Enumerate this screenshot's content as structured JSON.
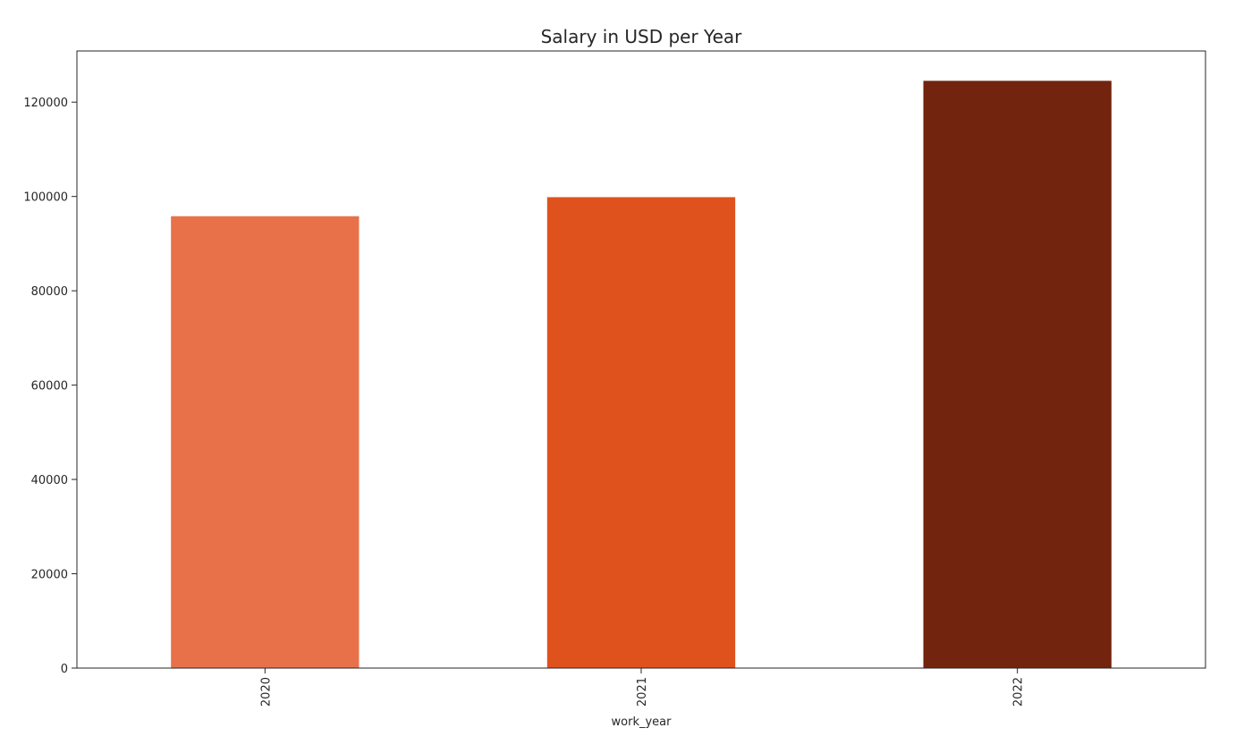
{
  "chart_data": {
    "type": "bar",
    "title": "Salary in USD per Year",
    "xlabel": "work_year",
    "ylabel": "",
    "categories": [
      "2020",
      "2021",
      "2022"
    ],
    "values": [
      95813,
      99854,
      124522
    ],
    "colors": [
      "#e8714a",
      "#e0521d",
      "#72240e"
    ],
    "ylim": [
      0,
      130850
    ],
    "yticks": [
      0,
      20000,
      40000,
      60000,
      80000,
      100000,
      120000
    ],
    "ytick_labels": [
      "0",
      "20000",
      "40000",
      "60000",
      "80000",
      "100000",
      "120000"
    ],
    "grid": false,
    "legend": "none",
    "axis_color": "#262626"
  }
}
